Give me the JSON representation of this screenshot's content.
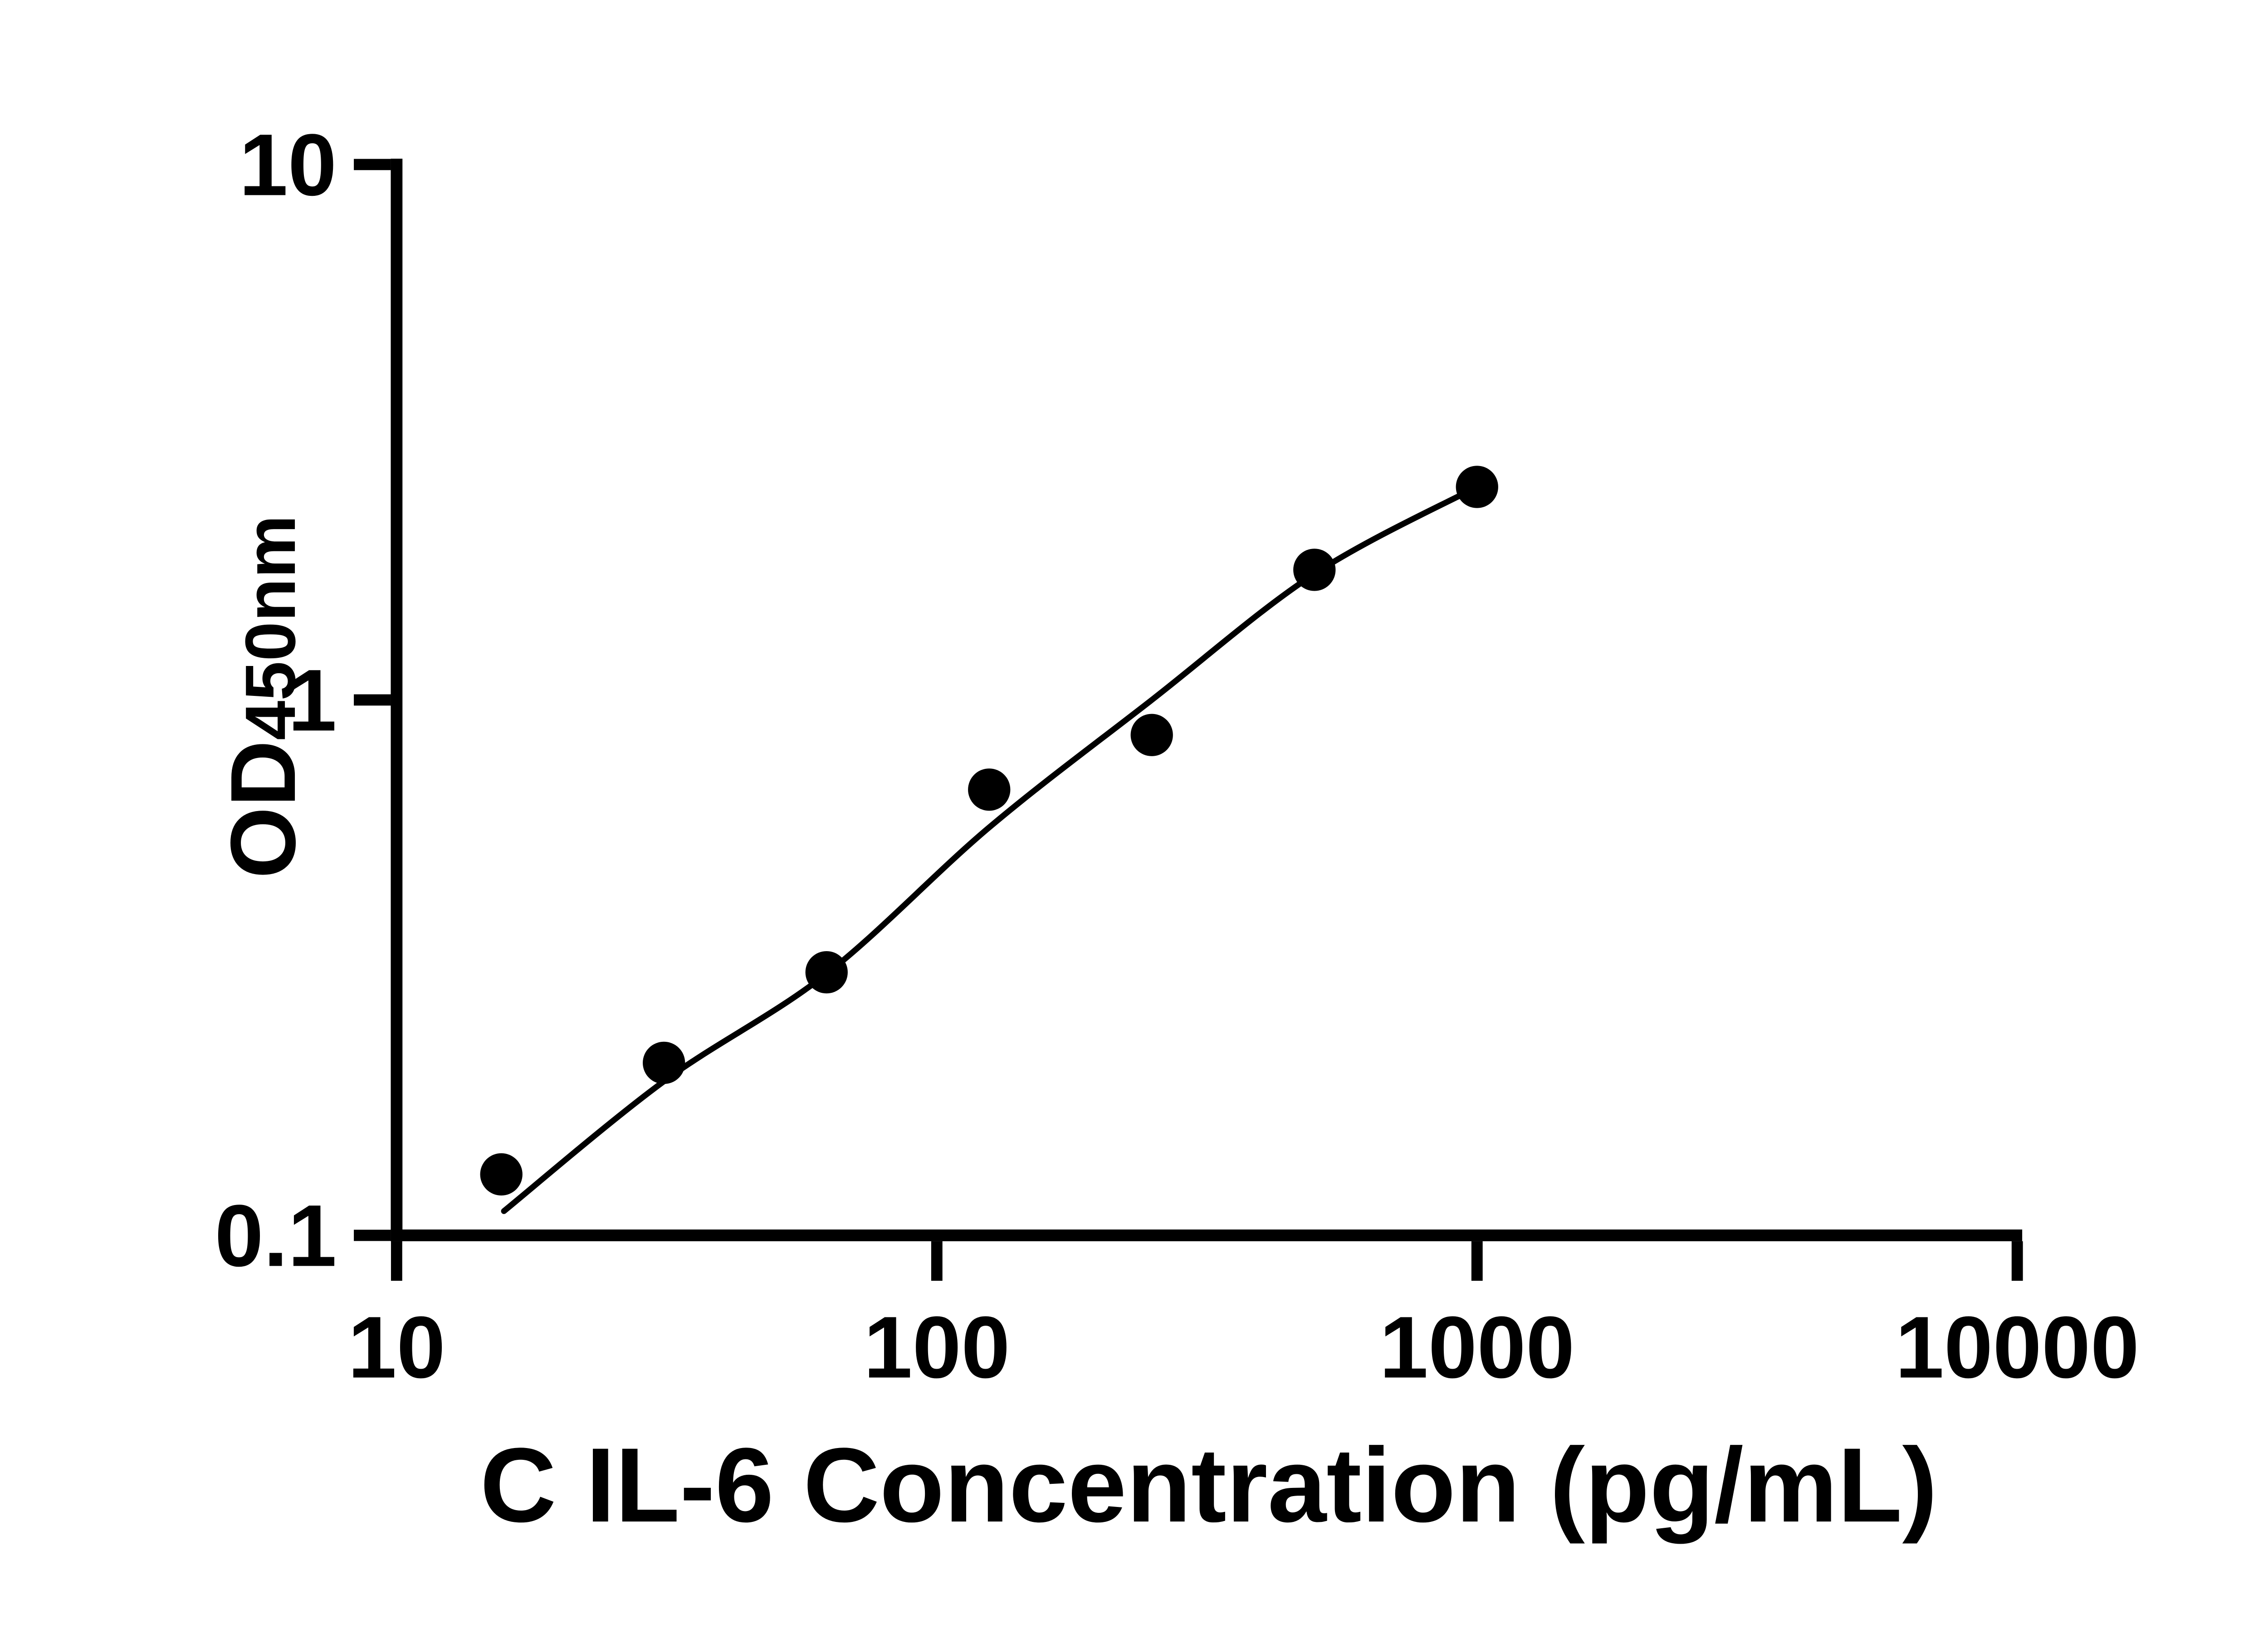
{
  "figure": {
    "background_color": "#ffffff",
    "ink_color": "#000000"
  },
  "chart_data": {
    "type": "scatter",
    "title": "",
    "xlabel": "C IL-6 Concentration (pg/mL)",
    "ylabel": "OD",
    "ylabel_sub": "450nm",
    "x_scale": "log10",
    "y_scale": "log10",
    "x_range": [
      10,
      10000
    ],
    "y_range": [
      0.1,
      10
    ],
    "grid": false,
    "legend": false,
    "x_ticks": [
      {
        "value": 10,
        "label": "10"
      },
      {
        "value": 100,
        "label": "100"
      },
      {
        "value": 1000,
        "label": "1000"
      },
      {
        "value": 10000,
        "label": "10000"
      }
    ],
    "y_ticks": [
      {
        "value": 0.1,
        "label": "0.1"
      },
      {
        "value": 1,
        "label": "1"
      },
      {
        "value": 10,
        "label": "10"
      }
    ],
    "series": [
      {
        "name": "standard-points",
        "marker": "filled-circle",
        "color": "#000000",
        "points": [
          {
            "x": 15.625,
            "od": 0.13
          },
          {
            "x": 31.25,
            "od": 0.21
          },
          {
            "x": 62.5,
            "od": 0.31
          },
          {
            "x": 125,
            "od": 0.68
          },
          {
            "x": 250,
            "od": 0.86
          },
          {
            "x": 500,
            "od": 1.75
          },
          {
            "x": 1000,
            "od": 2.5
          }
        ]
      }
    ],
    "fit_curve": {
      "name": "4pl-fit",
      "color": "#000000",
      "points": [
        [
          15.8,
          0.111
        ],
        [
          31.25,
          0.194
        ],
        [
          62.5,
          0.308
        ],
        [
          125,
          0.578
        ],
        [
          250,
          1.0
        ],
        [
          500,
          1.72
        ],
        [
          1000,
          2.5
        ]
      ]
    }
  }
}
